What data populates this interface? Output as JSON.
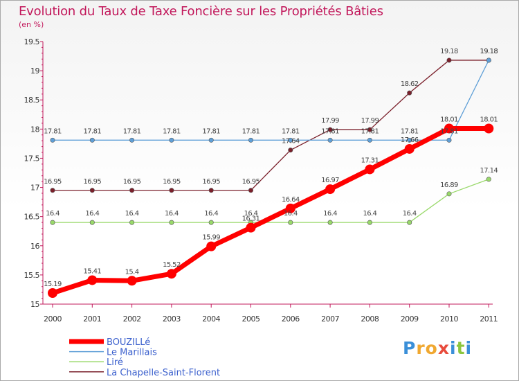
{
  "title": "Evolution du Taux de Taxe Foncière sur les Propriétés Bâties",
  "unit_label": "(en %)",
  "logo": {
    "text": "Proxiti",
    "letters": [
      "P",
      "r",
      "o",
      "x",
      "i",
      "t",
      "i"
    ],
    "colors": [
      "#3a8fd8",
      "#f0a830",
      "#f0a830",
      "#e84b3c",
      "#3a8fd8",
      "#8cc63f",
      "#3a8fd8"
    ]
  },
  "chart_data": {
    "type": "line",
    "title": "Evolution du Taux de Taxe Foncière sur les Propriétés Bâties",
    "ylabel": "(en %)",
    "x": [
      2000,
      2001,
      2002,
      2003,
      2004,
      2005,
      2006,
      2007,
      2008,
      2009,
      2010,
      2011
    ],
    "ylim": [
      15,
      19.5
    ],
    "yticks": [
      "15",
      "15.5",
      "16",
      "16.5",
      "17",
      "17.5",
      "18",
      "18.5",
      "19",
      "19.5"
    ],
    "grid": false,
    "legend": "bottom-left",
    "series": [
      {
        "name": "BOUZILLé",
        "color": "#ff0000",
        "width": 7,
        "marker": 7,
        "values": [
          15.19,
          15.41,
          15.4,
          15.52,
          15.99,
          16.31,
          16.64,
          16.97,
          17.31,
          17.66,
          18.01,
          18.01
        ]
      },
      {
        "name": "Le Marillais",
        "color": "#5f9fd7",
        "width": 1.3,
        "marker": 3.2,
        "values": [
          17.81,
          17.81,
          17.81,
          17.81,
          17.81,
          17.81,
          17.81,
          17.81,
          17.81,
          17.81,
          17.81,
          19.18
        ]
      },
      {
        "name": "Liré",
        "color": "#99d96a",
        "width": 1.3,
        "marker": 3.2,
        "values": [
          16.4,
          16.4,
          16.4,
          16.4,
          16.4,
          16.4,
          16.4,
          16.4,
          16.4,
          16.4,
          16.89,
          17.14
        ]
      },
      {
        "name": "La Chapelle-Saint-Florent",
        "color": "#7a1f2a",
        "width": 1.3,
        "marker": 3.2,
        "values": [
          16.95,
          16.95,
          16.95,
          16.95,
          16.95,
          16.95,
          17.64,
          17.99,
          17.99,
          18.62,
          19.18,
          19.18
        ]
      }
    ],
    "point_labels": [
      {
        "series": 3,
        "text": [
          "16.95",
          "16.95",
          "16.95",
          "16.95",
          "16.95",
          "16.95",
          "17.64",
          "17.99",
          "17.99",
          "18.62",
          "19.18",
          "19.18"
        ]
      },
      {
        "series": 1,
        "text": [
          "17.81",
          "17.81",
          "17.81",
          "17.81",
          "17.81",
          "17.81",
          "17.81",
          "17.81",
          "17.81",
          "17.81",
          "17.81",
          "19.18"
        ]
      },
      {
        "series": 2,
        "text": [
          "16.4",
          "16.4",
          "16.4",
          "16.4",
          "16.4",
          "16.4",
          "16.4",
          "16.4",
          "16.4",
          "16.4",
          "16.89",
          "17.14"
        ]
      },
      {
        "series": 0,
        "text": [
          "15.19",
          "15.41",
          "15.4",
          "15.52",
          "15.99",
          "16.31",
          "16.64",
          "16.97",
          "17.31",
          "17.66",
          "18.01",
          "18.01"
        ]
      }
    ]
  }
}
